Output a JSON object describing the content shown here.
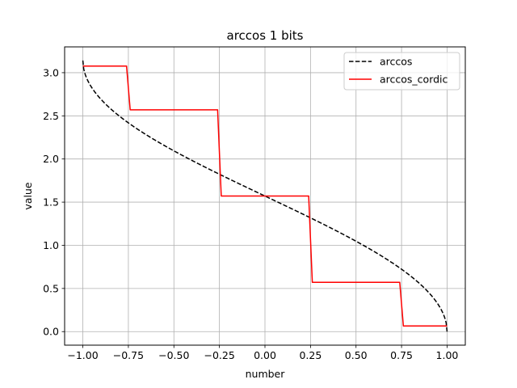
{
  "chart_data": {
    "type": "line",
    "title": "arccos 1 bits",
    "xlabel": "number",
    "ylabel": "value",
    "xlim": [
      -1.1,
      1.1
    ],
    "ylim": [
      -0.157,
      3.299
    ],
    "grid": true,
    "legend_position": "top-right",
    "x_ticks": [
      -1.0,
      -0.75,
      -0.5,
      -0.25,
      0.0,
      0.25,
      0.5,
      0.75,
      1.0
    ],
    "x_tick_labels": [
      "−1.00",
      "−0.75",
      "−0.50",
      "−0.25",
      "0.00",
      "0.25",
      "0.50",
      "0.75",
      "1.00"
    ],
    "y_ticks": [
      0.0,
      0.5,
      1.0,
      1.5,
      2.0,
      2.5,
      3.0
    ],
    "y_tick_labels": [
      "0.0",
      "0.5",
      "1.0",
      "1.5",
      "2.0",
      "2.5",
      "3.0"
    ],
    "series": [
      {
        "name": "arccos",
        "style": "dashed",
        "color": "#000000",
        "function": "arccos",
        "x_range": [
          -1.0,
          1.0
        ]
      },
      {
        "name": "arccos_cordic",
        "style": "solid",
        "color": "#ff0000",
        "x": [
          -1.0,
          -0.76,
          -0.74,
          -0.26,
          -0.24,
          0.24,
          0.26,
          0.74,
          0.76,
          1.0
        ],
        "y": [
          3.077,
          3.077,
          2.57,
          2.57,
          1.571,
          1.571,
          0.571,
          0.571,
          0.065,
          0.065
        ]
      }
    ]
  }
}
